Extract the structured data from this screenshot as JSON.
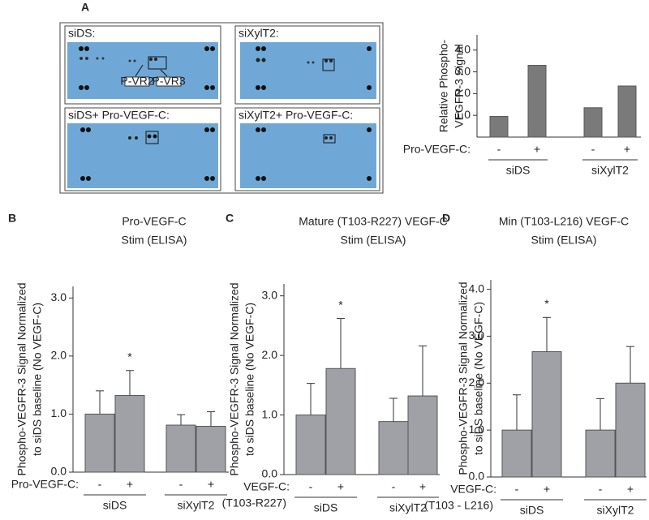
{
  "panel_labels": [
    "A",
    "B",
    "C",
    "D"
  ],
  "blots": {
    "titles": [
      "siDS:",
      "siXylT2:",
      "siDS+ Pro-VEGF-C:",
      "siXylT2+ Pro-VEGF-C:"
    ],
    "annotations": [
      "P-VR2",
      "P-VR3"
    ]
  },
  "chart_data": [
    {
      "type": "bar",
      "ylabel": [
        "Relative Phospho-",
        "VEGFR-3 Signal"
      ],
      "categories": [
        "-",
        "+",
        "-",
        "+"
      ],
      "groups": [
        "siDS",
        "siXylT2"
      ],
      "x_prefix": "Pro-VEGF-C:",
      "values": [
        0.95,
        3.3,
        1.35,
        2.35
      ],
      "color": "#7a7a7a",
      "ylim": [
        0,
        4.7
      ],
      "yticks": [
        {
          "value": 1,
          "label": "1.0"
        },
        {
          "value": 2,
          "label": "2.0"
        },
        {
          "value": 3,
          "label": "3.0"
        },
        {
          "value": 4,
          "label": "4.0"
        }
      ]
    },
    {
      "type": "bar",
      "title": [
        "Pro-VEGF-C",
        "Stim (ELISA)"
      ],
      "ylabel": [
        "Phospho-VEGFR-3 Signal Normalized",
        "to siDS baseline (No VEGF-C)"
      ],
      "categories": [
        "-",
        "+",
        "-",
        "+"
      ],
      "groups": [
        "siDS",
        "siXylT2"
      ],
      "x_prefix": "Pro-VEGF-C:",
      "values": [
        1.0,
        1.32,
        0.81,
        0.79
      ],
      "errors": [
        0.4,
        0.43,
        0.18,
        0.25
      ],
      "significance": "*",
      "color": "#a0a1a6",
      "ylim": [
        0,
        3.2
      ],
      "yticks": [
        {
          "value": 0,
          "label": "0.0"
        },
        {
          "value": 1,
          "label": "1.0"
        },
        {
          "value": 2,
          "label": "2.0"
        },
        {
          "value": 3,
          "label": "3.0"
        }
      ]
    },
    {
      "type": "bar",
      "title": [
        "Mature (T103-R227) VEGF-C",
        "Stim (ELISA)"
      ],
      "ylabel": [
        "Phospho-VEGFR-3 Signal Normalized",
        "to siDS baseline (No VEGF-C)"
      ],
      "categories": [
        "-",
        "+",
        "-",
        "+"
      ],
      "groups": [
        "siDS",
        "siXylT2"
      ],
      "x_prefix": "VEGF-C:",
      "x_prefix_note": "(T103-R227)",
      "values": [
        1.0,
        1.78,
        0.89,
        1.32
      ],
      "errors": [
        0.53,
        0.84,
        0.39,
        0.84
      ],
      "significance": "*",
      "color": "#a0a1a6",
      "ylim": [
        0,
        3.2
      ],
      "yticks": [
        {
          "value": 0,
          "label": "0.0"
        },
        {
          "value": 1,
          "label": "1.0"
        },
        {
          "value": 2,
          "label": "2.0"
        },
        {
          "value": 3,
          "label": "3.0"
        }
      ]
    },
    {
      "type": "bar",
      "title": [
        "Min (T103-L216) VEGF-C",
        "Stim (ELISA)"
      ],
      "ylabel": [
        "Phospho-VEGFR-3 Signal Normalized",
        "to siDS baseline (No VEGF-C)"
      ],
      "categories": [
        "-",
        "+",
        "-",
        "+"
      ],
      "groups": [
        "siDS",
        "siXylT2"
      ],
      "x_prefix": "VEGF-C:",
      "x_prefix_note": "(T103 - L216)",
      "values": [
        1.0,
        2.67,
        1.0,
        2.0
      ],
      "errors": [
        0.75,
        0.73,
        0.67,
        0.78
      ],
      "significance": "*",
      "color": "#a0a1a6",
      "ylim": [
        0,
        4.2
      ],
      "yticks": [
        {
          "value": 0,
          "label": "0.0"
        },
        {
          "value": 1,
          "label": "1.0"
        },
        {
          "value": 2,
          "label": "2.0"
        },
        {
          "value": 3,
          "label": "3.0"
        },
        {
          "value": 4,
          "label": "4.0"
        }
      ]
    }
  ]
}
